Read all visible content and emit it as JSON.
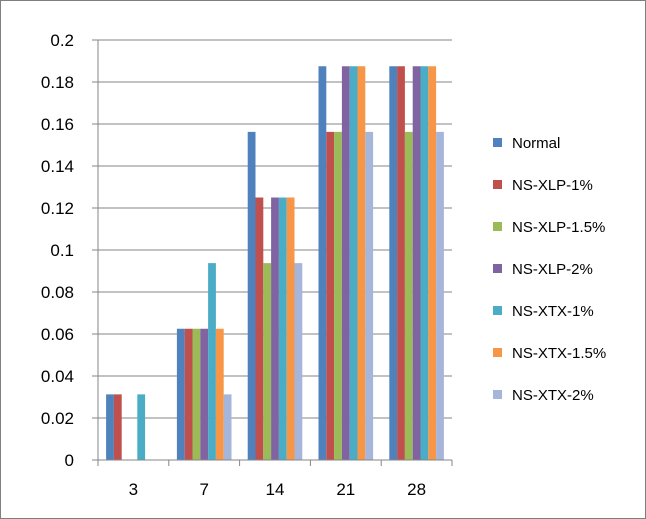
{
  "chart_data": {
    "type": "bar",
    "title": "",
    "xlabel": "",
    "ylabel": "",
    "categories": [
      "3",
      "7",
      "14",
      "21",
      "28"
    ],
    "ylim": [
      0,
      0.2
    ],
    "yticks": [
      "0",
      "0.02",
      "0.04",
      "0.06",
      "0.08",
      "0.1",
      "0.12",
      "0.14",
      "0.16",
      "0.18",
      "0.2"
    ],
    "grid": true,
    "legend_position": "right",
    "series": [
      {
        "name": "Normal",
        "color": "#4f81bd",
        "values": [
          0.03125,
          0.0625,
          0.15625,
          0.1875,
          0.1875
        ]
      },
      {
        "name": "NS-XLP-1%",
        "color": "#c0504d",
        "values": [
          0.03125,
          0.0625,
          0.125,
          0.15625,
          0.1875
        ]
      },
      {
        "name": "NS-XLP-1.5%",
        "color": "#9bbb59",
        "values": [
          0,
          0.0625,
          0.09375,
          0.15625,
          0.15625
        ]
      },
      {
        "name": "NS-XLP-2%",
        "color": "#8064a2",
        "values": [
          0,
          0.0625,
          0.125,
          0.1875,
          0.1875
        ]
      },
      {
        "name": "NS-XTX-1%",
        "color": "#4bacc6",
        "values": [
          0.03125,
          0.09375,
          0.125,
          0.1875,
          0.1875
        ]
      },
      {
        "name": "NS-XTX-1.5%",
        "color": "#f79646",
        "values": [
          0,
          0.0625,
          0.125,
          0.1875,
          0.1875
        ]
      },
      {
        "name": "NS-XTX-2%",
        "color": "#a5b6da",
        "values": [
          0,
          0.03125,
          0.09375,
          0.15625,
          0.15625
        ]
      }
    ]
  }
}
